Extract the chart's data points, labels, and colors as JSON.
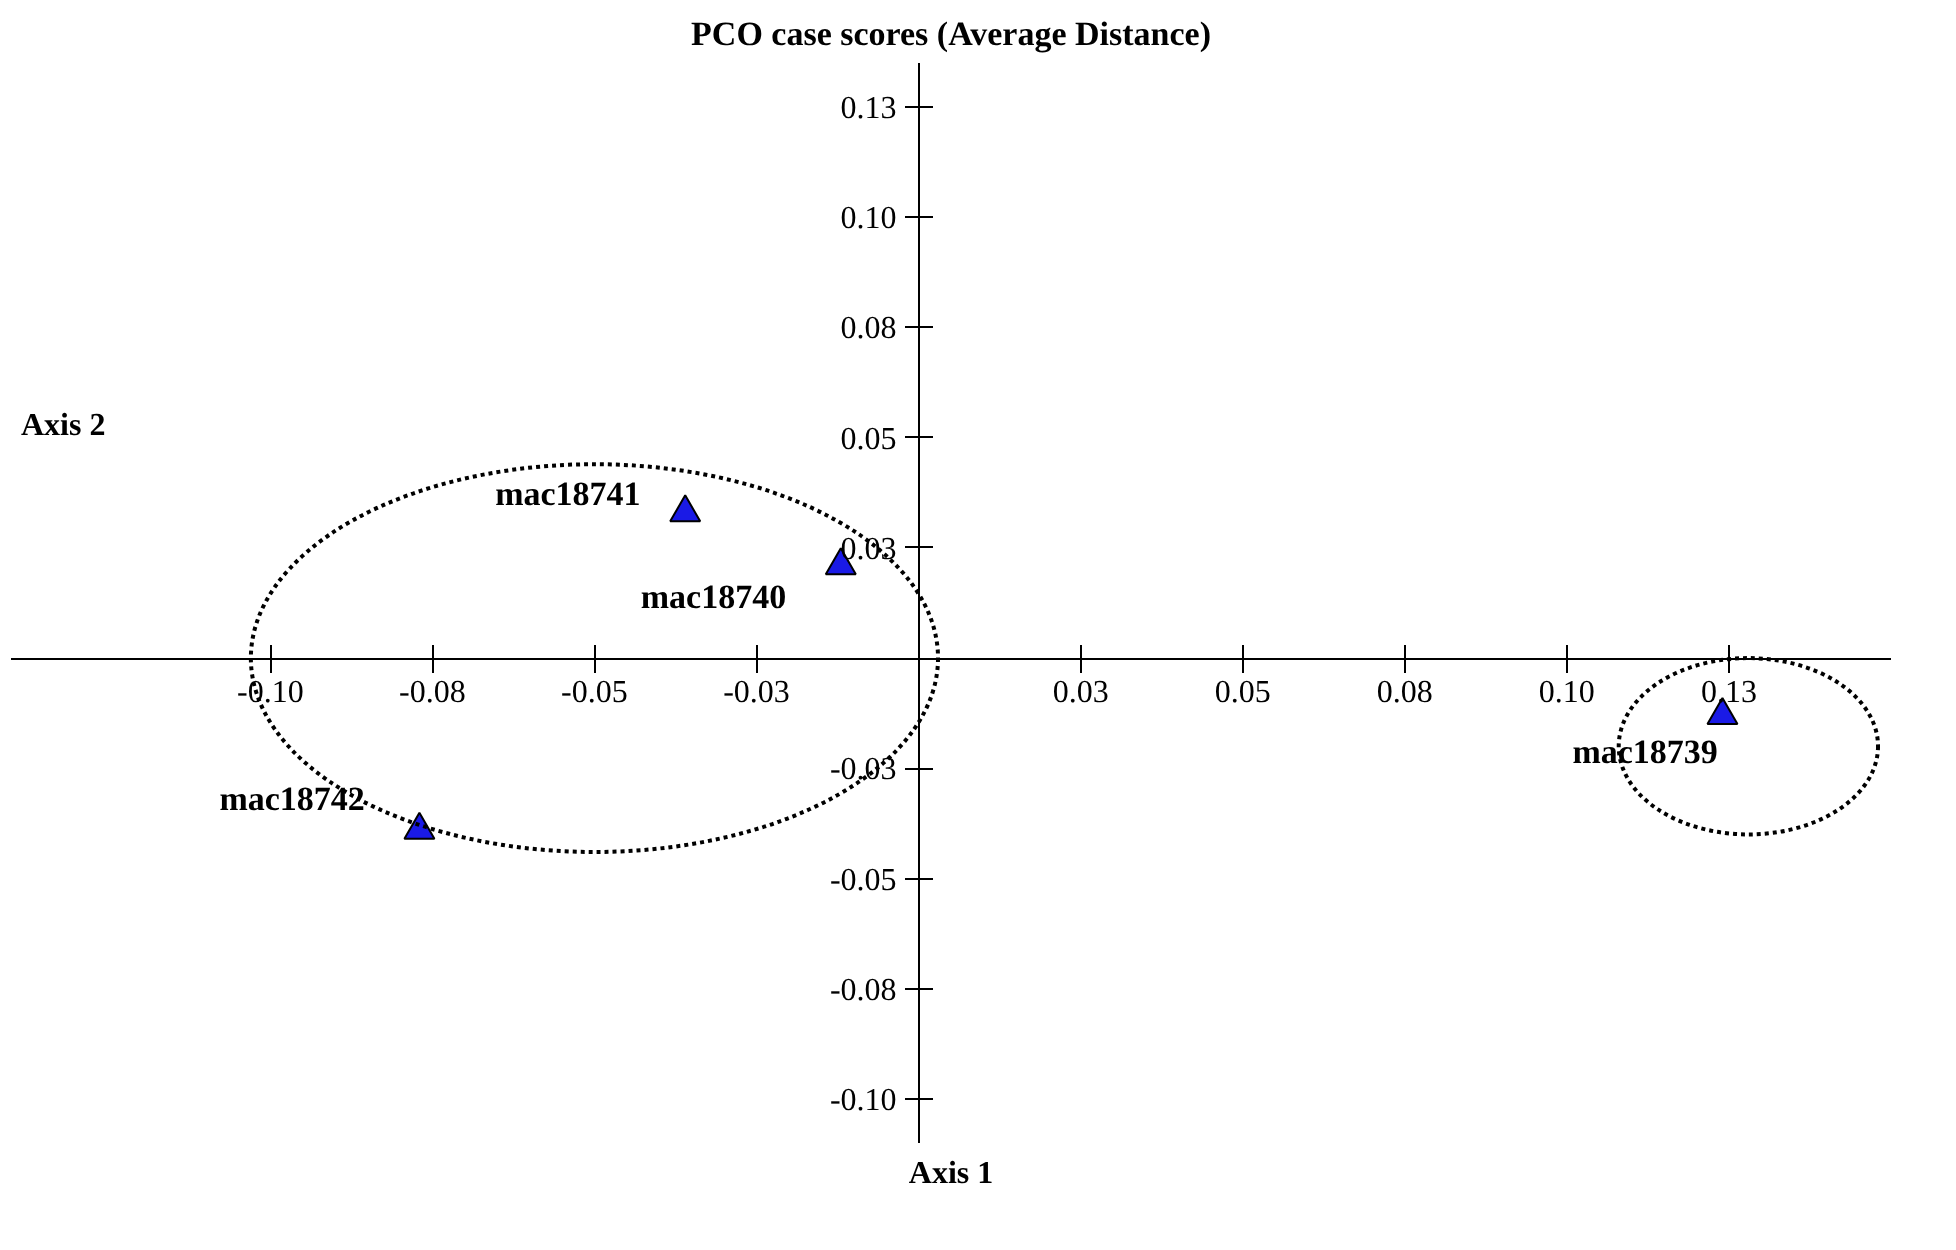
{
  "chart_data": {
    "type": "scatter",
    "title": "PCO case scores (Average Distance)",
    "xlabel": "Axis 1",
    "ylabel": "Axis 2",
    "x": [
      -0.036,
      -0.012,
      -0.077,
      0.124
    ],
    "series": [
      {
        "color": "#1a1ae6",
        "values": [
          0.033,
          0.021,
          -0.039,
          -0.013
        ]
      }
    ],
    "marker": "triangle",
    "grid": false,
    "xlim": [
      -0.14,
      0.15
    ],
    "ylim": [
      -0.11,
      0.135
    ],
    "xticks": [
      {
        "value": -0.1,
        "label": "-0.10"
      },
      {
        "value": -0.075,
        "label": "-0.08"
      },
      {
        "value": -0.05,
        "label": "-0.05"
      },
      {
        "value": -0.025,
        "label": "-0.03"
      },
      {
        "value": 0.025,
        "label": "0.03"
      },
      {
        "value": 0.05,
        "label": "0.05"
      },
      {
        "value": 0.075,
        "label": "0.08"
      },
      {
        "value": 0.1,
        "label": "0.10"
      },
      {
        "value": 0.125,
        "label": "0.13"
      }
    ],
    "yticks": [
      {
        "value": -0.1,
        "label": "-0.10"
      },
      {
        "value": -0.075,
        "label": "-0.08"
      },
      {
        "value": -0.05,
        "label": "-0.05"
      },
      {
        "value": -0.025,
        "label": "-0.03"
      },
      {
        "value": 0.025,
        "label": "0.03"
      },
      {
        "value": 0.05,
        "label": "0.05"
      },
      {
        "value": 0.075,
        "label": "0.08"
      },
      {
        "value": 0.1,
        "label": "0.10"
      },
      {
        "value": 0.125,
        "label": "0.13"
      }
    ],
    "annotations": [
      {
        "text": "mac18741",
        "x": -0.036,
        "y": 0.033
      },
      {
        "text": "mac18740",
        "x": -0.012,
        "y": 0.021
      },
      {
        "text": "mac18742",
        "x": -0.077,
        "y": -0.039
      },
      {
        "text": "mac18739",
        "x": 0.124,
        "y": -0.013
      }
    ]
  }
}
